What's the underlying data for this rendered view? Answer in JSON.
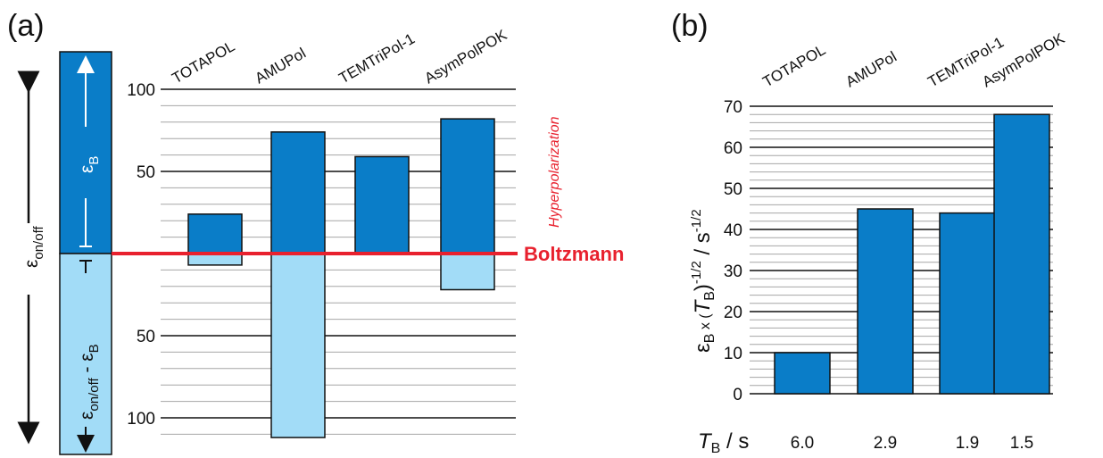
{
  "colors": {
    "bar_dark": "#0a7dc8",
    "bar_light": "#a2dcf7",
    "boltzmann": "#e8212e",
    "grid_major": "#111111",
    "grid_minor": "#a6a6a6"
  },
  "panel_a": {
    "label": "(a)",
    "hyperpolarization_label": "Hyperpolarization",
    "boltzmann_label": "Boltzmann",
    "epsilon_onoff_label": "ε",
    "epsilon_onoff_sub": "on/off",
    "epsilon_b_label": "ε",
    "epsilon_b_sub": "B",
    "diff_eps": "ε",
    "diff_sub": "on/off",
    "diff_minus": " - ε",
    "diff_sub2": "B"
  },
  "panel_b": {
    "label": "(b)",
    "x_axis_prefix": "T",
    "x_axis_sub": "B",
    "x_axis_suffix": " / s",
    "ylabel_eps": "ε",
    "ylabel_eps_sub": "B",
    "ylabel_times": " x (",
    "ylabel_T": "T",
    "ylabel_T_sub": "B",
    "ylabel_close": ")",
    "ylabel_exp": "-1/2",
    "ylabel_unit": " / s",
    "ylabel_unit_exp": "-1/2"
  },
  "chart_data": [
    {
      "type": "bar",
      "categories": [
        "TOTAPOL",
        "AMUPol",
        "TEMTriPol-1",
        "AsymPolPOK"
      ],
      "series": [
        {
          "values": [
            24,
            74,
            59,
            82
          ]
        },
        {
          "values": [
            7,
            112,
            null,
            22
          ]
        }
      ],
      "yticks_up": [
        50,
        100
      ],
      "yticks_down": [
        50,
        100
      ],
      "baseline_label": "Boltzmann"
    },
    {
      "type": "bar",
      "categories": [
        "TOTAPOL",
        "AMUPol",
        "TEMTriPol-1",
        "AsymPolPOK"
      ],
      "values": [
        10,
        45,
        44,
        68
      ],
      "x_values": [
        "6.0",
        "2.9",
        "1.9",
        "1.5"
      ],
      "ylim": [
        0,
        70
      ],
      "yticks": [
        0,
        10,
        20,
        30,
        40,
        50,
        60,
        70
      ],
      "grid": true
    }
  ]
}
